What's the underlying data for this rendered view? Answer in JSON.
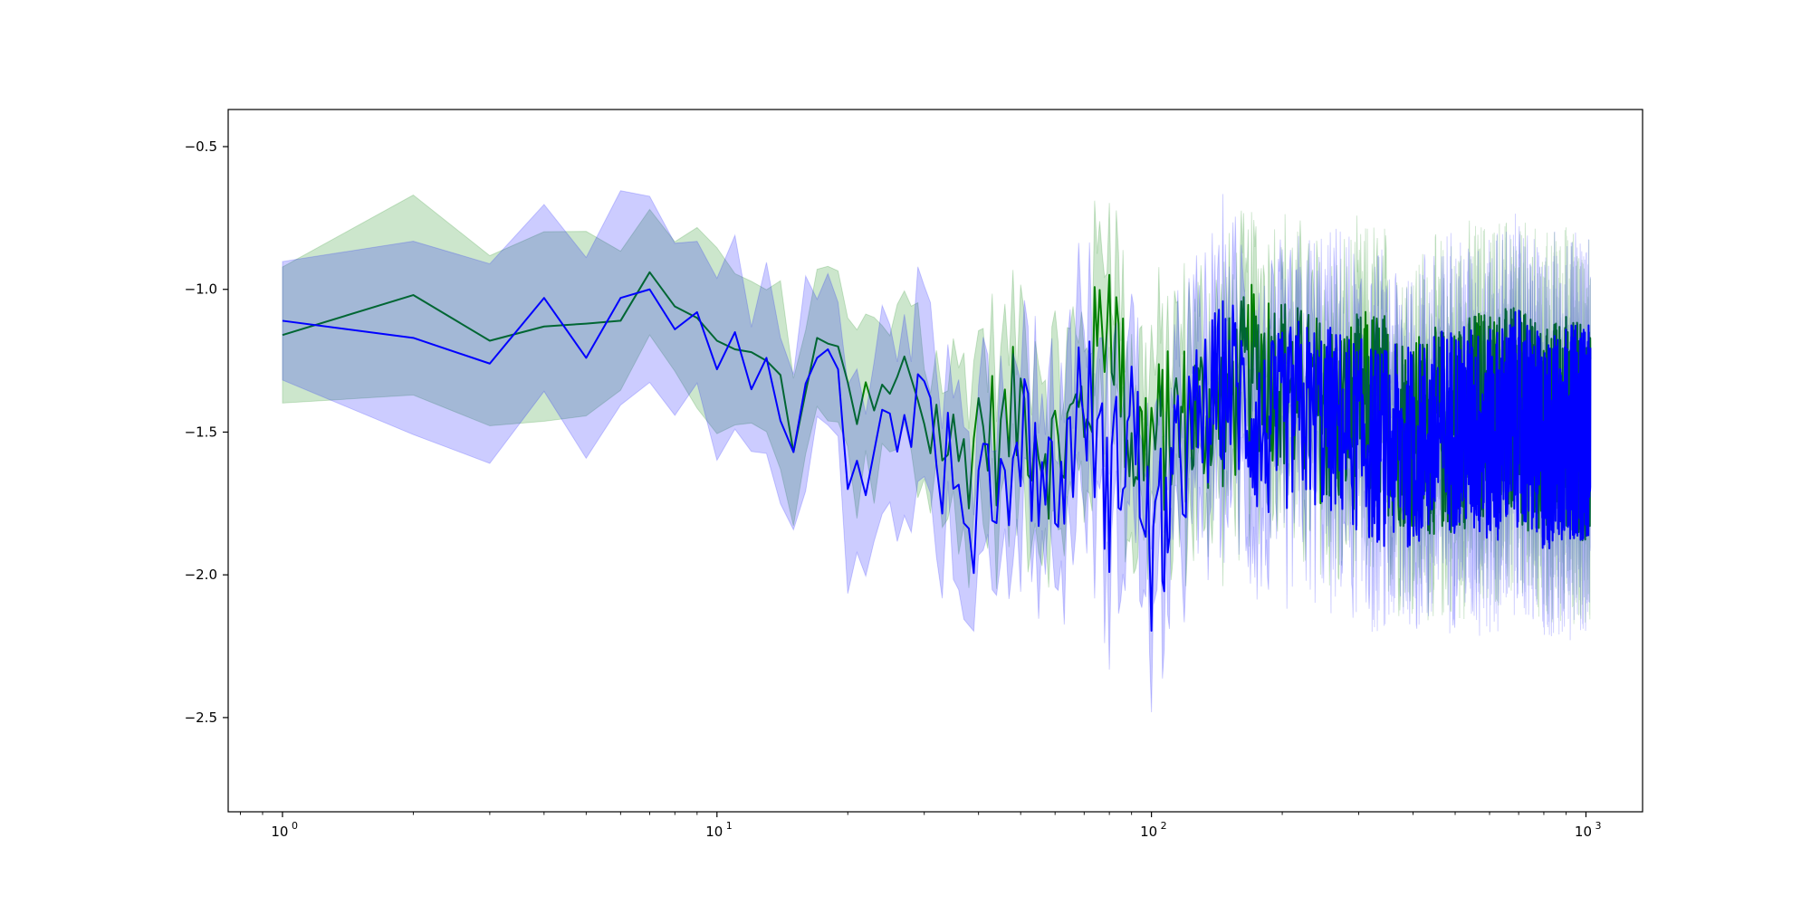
{
  "chart_data": {
    "type": "line",
    "title": "",
    "xlabel": "",
    "ylabel": "",
    "xscale": "log",
    "xlim": [
      0.75,
      1350
    ],
    "ylim": [
      -2.83,
      -0.37
    ],
    "xticks": [
      {
        "value": 1,
        "base": "10",
        "exp": "0"
      },
      {
        "value": 10,
        "base": "10",
        "exp": "1"
      },
      {
        "value": 100,
        "base": "10",
        "exp": "2"
      },
      {
        "value": 1000,
        "base": "10",
        "exp": "3"
      }
    ],
    "yticks": [
      {
        "value": -0.5,
        "label": "−0.5"
      },
      {
        "value": -1.0,
        "label": "−1.0"
      },
      {
        "value": -1.5,
        "label": "−1.5"
      },
      {
        "value": -2.0,
        "label": "−2.0"
      },
      {
        "value": -2.5,
        "label": "−2.5"
      }
    ],
    "grid": false,
    "legend": "none",
    "series": [
      {
        "color": "#008000",
        "band_color": "#008000",
        "band_opacity": 0.2,
        "band_halfwidth": 0.27,
        "x": [
          1,
          2,
          3,
          4,
          5,
          6,
          7,
          8,
          9,
          10,
          11,
          12,
          13,
          14,
          15,
          16,
          17,
          18,
          19,
          20,
          22,
          24,
          26,
          28,
          30,
          33,
          36,
          40,
          45,
          50,
          60,
          70,
          80,
          90,
          100,
          120,
          150,
          180,
          220,
          270,
          330,
          400,
          500,
          600,
          700,
          800,
          900,
          1024
        ],
        "values": [
          -1.16,
          -1.02,
          -1.18,
          -1.13,
          -1.12,
          -1.11,
          -0.94,
          -1.06,
          -1.1,
          -1.18,
          -1.21,
          -1.22,
          -1.25,
          -1.3,
          -1.57,
          -1.36,
          -1.17,
          -1.19,
          -1.2,
          -1.43,
          -1.46,
          -1.42,
          -1.39,
          -1.26,
          -1.44,
          -1.5,
          -1.62,
          -1.46,
          -1.53,
          -1.4,
          -1.58,
          -1.42,
          -1.01,
          -1.55,
          -1.53,
          -1.46,
          -1.4,
          -1.25,
          -1.38,
          -1.45,
          -1.4,
          -1.52,
          -1.48,
          -1.42,
          -1.45,
          -1.5,
          -1.46,
          -1.52
        ]
      },
      {
        "color": "#0000ff",
        "band_color": "#0000ff",
        "band_opacity": 0.2,
        "band_halfwidth": 0.29,
        "x": [
          1,
          2,
          3,
          4,
          5,
          6,
          7,
          8,
          9,
          10,
          11,
          12,
          13,
          14,
          15,
          16,
          17,
          18,
          19,
          20,
          22,
          24,
          26,
          28,
          30,
          33,
          36,
          38,
          40,
          45,
          50,
          60,
          70,
          80,
          90,
          100,
          120,
          150,
          180,
          220,
          270,
          330,
          400,
          500,
          600,
          700,
          800,
          900,
          1024
        ],
        "values": [
          -1.11,
          -1.17,
          -1.26,
          -1.03,
          -1.24,
          -1.03,
          -1.0,
          -1.14,
          -1.08,
          -1.28,
          -1.15,
          -1.35,
          -1.24,
          -1.46,
          -1.57,
          -1.33,
          -1.24,
          -1.21,
          -1.28,
          -1.6,
          -1.51,
          -1.55,
          -1.39,
          -1.4,
          -1.43,
          -1.58,
          -1.75,
          -2.07,
          -1.5,
          -1.72,
          -1.47,
          -1.74,
          -1.35,
          -1.72,
          -1.43,
          -1.95,
          -1.55,
          -1.3,
          -1.52,
          -1.42,
          -1.47,
          -1.55,
          -1.55,
          -1.48,
          -1.52,
          -1.45,
          -1.55,
          -1.5,
          -1.5
        ]
      }
    ]
  }
}
